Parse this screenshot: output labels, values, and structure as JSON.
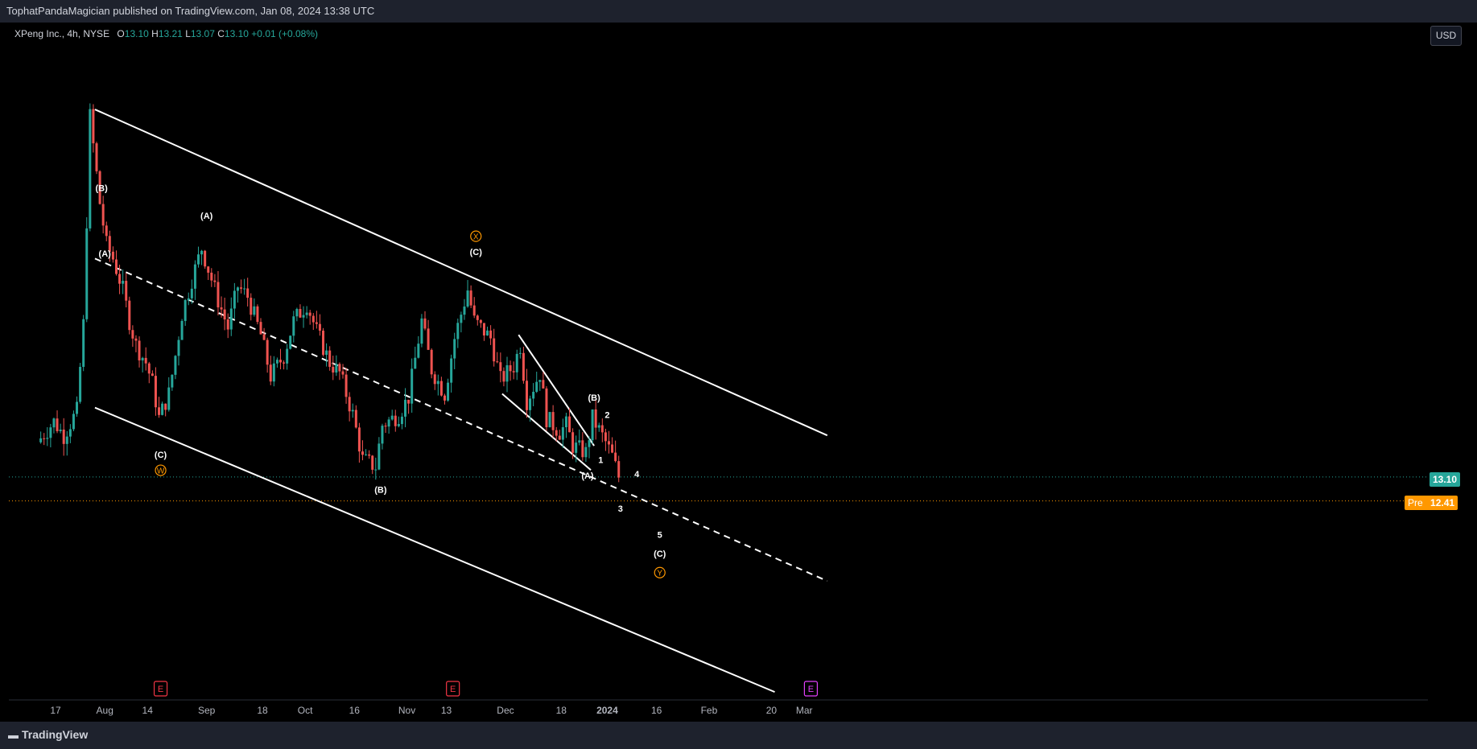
{
  "header": {
    "publisher_line": "TophatPandaMagician published on TradingView.com, Jan 08, 2024 13:38 UTC"
  },
  "legend": {
    "symbol": "XPeng Inc., 4h, NYSE",
    "o_label": "O",
    "o_value": "13.10",
    "h_label": "H",
    "h_value": "13.21",
    "l_label": "L",
    "l_value": "13.07",
    "c_label": "C",
    "c_value": "13.10",
    "change": "+0.01 (+0.08%)"
  },
  "currency_button": "USD",
  "current_price": {
    "label": "13.10",
    "color": "#26a69a"
  },
  "premarket": {
    "prefix": "Pre",
    "label": "12.41",
    "color": "#ff9800"
  },
  "footer": {
    "logo_text": "TradingView"
  },
  "colors": {
    "up": "#26a69a",
    "down": "#ef5350",
    "wave_orange": "#ff9800",
    "earnings_red": "#f23645",
    "earnings_purple": "#e040fb"
  },
  "chart_data": {
    "type": "candlestick",
    "symbol": "XPeng Inc.",
    "interval": "4h",
    "y_axis": {
      "ticks": [
        "25.00",
        "24.00",
        "23.00",
        "22.00",
        "21.00",
        "20.00",
        "19.00",
        "18.00",
        "17.00",
        "16.00",
        "15.00",
        "14.00",
        "13.00",
        "12.00",
        "11.00",
        "10.00",
        "9.00",
        "8.00",
        "7.00"
      ],
      "range": [
        6.5,
        26
      ]
    },
    "x_axis": {
      "ticks": [
        "17",
        "Aug",
        "14",
        "Sep",
        "18",
        "Oct",
        "16",
        "Nov",
        "13",
        "Dec",
        "18",
        "2024",
        "16",
        "Feb",
        "20",
        "Mar"
      ]
    },
    "price_path": [
      {
        "date": "2023-07-12",
        "value": 14.1
      },
      {
        "date": "2023-07-17",
        "value": 14.7
      },
      {
        "date": "2023-07-20",
        "value": 14.3
      },
      {
        "date": "2023-07-24",
        "value": 15.0
      },
      {
        "date": "2023-07-26",
        "value": 17.5
      },
      {
        "date": "2023-07-28",
        "value": 23.5
      },
      {
        "date": "2023-07-31",
        "value": 21.0
      },
      {
        "date": "2023-08-02",
        "value": 19.8
      },
      {
        "date": "2023-08-04",
        "value": 19.4
      },
      {
        "date": "2023-08-07",
        "value": 18.5
      },
      {
        "date": "2023-08-09",
        "value": 17.6
      },
      {
        "date": "2023-08-11",
        "value": 16.9
      },
      {
        "date": "2023-08-14",
        "value": 16.4
      },
      {
        "date": "2023-08-16",
        "value": 15.8
      },
      {
        "date": "2023-08-18",
        "value": 14.8
      },
      {
        "date": "2023-08-21",
        "value": 15.5
      },
      {
        "date": "2023-08-23",
        "value": 16.6
      },
      {
        "date": "2023-08-25",
        "value": 17.8
      },
      {
        "date": "2023-08-28",
        "value": 18.8
      },
      {
        "date": "2023-08-31",
        "value": 19.7
      },
      {
        "date": "2023-09-05",
        "value": 18.2
      },
      {
        "date": "2023-09-08",
        "value": 17.4
      },
      {
        "date": "2023-09-11",
        "value": 18.6
      },
      {
        "date": "2023-09-14",
        "value": 18.3
      },
      {
        "date": "2023-09-18",
        "value": 17.2
      },
      {
        "date": "2023-09-21",
        "value": 16.0
      },
      {
        "date": "2023-09-25",
        "value": 16.6
      },
      {
        "date": "2023-09-28",
        "value": 17.6
      },
      {
        "date": "2023-10-02",
        "value": 18.1
      },
      {
        "date": "2023-10-05",
        "value": 17.3
      },
      {
        "date": "2023-10-09",
        "value": 16.4
      },
      {
        "date": "2023-10-12",
        "value": 16.1
      },
      {
        "date": "2023-10-16",
        "value": 14.9
      },
      {
        "date": "2023-10-19",
        "value": 13.6
      },
      {
        "date": "2023-10-23",
        "value": 13.4
      },
      {
        "date": "2023-10-25",
        "value": 14.6
      },
      {
        "date": "2023-10-30",
        "value": 14.9
      },
      {
        "date": "2023-11-02",
        "value": 15.4
      },
      {
        "date": "2023-11-06",
        "value": 17.6
      },
      {
        "date": "2023-11-09",
        "value": 16.2
      },
      {
        "date": "2023-11-13",
        "value": 15.5
      },
      {
        "date": "2023-11-16",
        "value": 17.1
      },
      {
        "date": "2023-11-20",
        "value": 18.5
      },
      {
        "date": "2023-11-22",
        "value": 17.6
      },
      {
        "date": "2023-11-27",
        "value": 17.1
      },
      {
        "date": "2023-11-30",
        "value": 15.9
      },
      {
        "date": "2023-12-04",
        "value": 16.3
      },
      {
        "date": "2023-12-06",
        "value": 16.9
      },
      {
        "date": "2023-12-08",
        "value": 15.3
      },
      {
        "date": "2023-12-12",
        "value": 16.1
      },
      {
        "date": "2023-12-14",
        "value": 14.8
      },
      {
        "date": "2023-12-18",
        "value": 14.4
      },
      {
        "date": "2023-12-20",
        "value": 14.6
      },
      {
        "date": "2023-12-22",
        "value": 14.0
      },
      {
        "date": "2023-12-26",
        "value": 13.8
      },
      {
        "date": "2023-12-28",
        "value": 14.8
      },
      {
        "date": "2024-01-01",
        "value": 14.1
      },
      {
        "date": "2024-01-03",
        "value": 13.7
      },
      {
        "date": "2024-01-05",
        "value": 13.1
      }
    ],
    "annotations": [
      {
        "text": "(B)",
        "date": "2023-07-31",
        "price": 21.35,
        "color": "#ffffff"
      },
      {
        "text": "(A)",
        "date": "2023-08-01",
        "price": 19.45,
        "color": "#ffffff"
      },
      {
        "text": "(C)",
        "date": "2023-08-18",
        "price": 13.65,
        "color": "#ffffff"
      },
      {
        "text": "W",
        "date": "2023-08-18",
        "price": 13.2,
        "color": "#ff9800",
        "circled": true
      },
      {
        "text": "(A)",
        "date": "2023-09-01",
        "price": 20.55,
        "color": "#ffffff"
      },
      {
        "text": "(B)",
        "date": "2023-10-24",
        "price": 12.65,
        "color": "#ffffff"
      },
      {
        "text": "X",
        "date": "2023-11-22",
        "price": 19.95,
        "color": "#ff9800",
        "circled": true
      },
      {
        "text": "(C)",
        "date": "2023-11-22",
        "price": 19.5,
        "color": "#ffffff"
      },
      {
        "text": "(B)",
        "date": "2023-12-28",
        "price": 15.3,
        "color": "#ffffff"
      },
      {
        "text": "2",
        "date": "2024-01-01",
        "price": 14.8,
        "color": "#ffffff"
      },
      {
        "text": "1",
        "date": "2023-12-30",
        "price": 13.5,
        "color": "#ffffff"
      },
      {
        "text": "(A)",
        "date": "2023-12-26",
        "price": 13.05,
        "color": "#ffffff"
      },
      {
        "text": "4",
        "date": "2024-01-10",
        "price": 13.1,
        "color": "#ffffff"
      },
      {
        "text": "3",
        "date": "2024-01-05",
        "price": 12.1,
        "color": "#ffffff"
      },
      {
        "text": "5",
        "date": "2024-01-17",
        "price": 11.35,
        "color": "#ffffff"
      },
      {
        "text": "(C)",
        "date": "2024-01-17",
        "price": 10.8,
        "color": "#ffffff"
      },
      {
        "text": "Y",
        "date": "2024-01-17",
        "price": 10.25,
        "color": "#ff9800",
        "circled": true
      }
    ],
    "earnings_markers": [
      {
        "text": "E",
        "date": "2023-08-18",
        "color": "#f23645"
      },
      {
        "text": "E",
        "date": "2023-11-15",
        "color": "#f23645"
      },
      {
        "text": "E",
        "date": "2024-03-03",
        "color": "#e040fb"
      }
    ],
    "trendlines": [
      {
        "name": "channel-upper",
        "start": {
          "date": "2023-07-29",
          "price": 23.7
        },
        "end": {
          "date": "2024-03-08",
          "price": 14.3
        },
        "style": "solid"
      },
      {
        "name": "channel-lower",
        "start": {
          "date": "2023-07-29",
          "price": 15.1
        },
        "end": {
          "date": "2024-02-21",
          "price": 6.9
        },
        "style": "solid"
      },
      {
        "name": "midline",
        "start": {
          "date": "2023-07-29",
          "price": 19.4
        },
        "end": {
          "date": "2024-03-08",
          "price": 10.1
        },
        "style": "dashed"
      },
      {
        "name": "wedge-upper",
        "start": {
          "date": "2023-12-05",
          "price": 17.2
        },
        "end": {
          "date": "2023-12-28",
          "price": 14.0
        },
        "style": "solid"
      },
      {
        "name": "wedge-lower",
        "start": {
          "date": "2023-11-30",
          "price": 15.5
        },
        "end": {
          "date": "2023-12-27",
          "price": 13.3
        },
        "style": "solid"
      }
    ],
    "horizontal_lines": [
      {
        "name": "last-price",
        "price": 13.1,
        "color": "#26a69a",
        "style": "dotted"
      },
      {
        "name": "premarket",
        "price": 12.41,
        "color": "#ff9800",
        "style": "dotted"
      }
    ],
    "grid": false,
    "legend_position": "top-left"
  }
}
